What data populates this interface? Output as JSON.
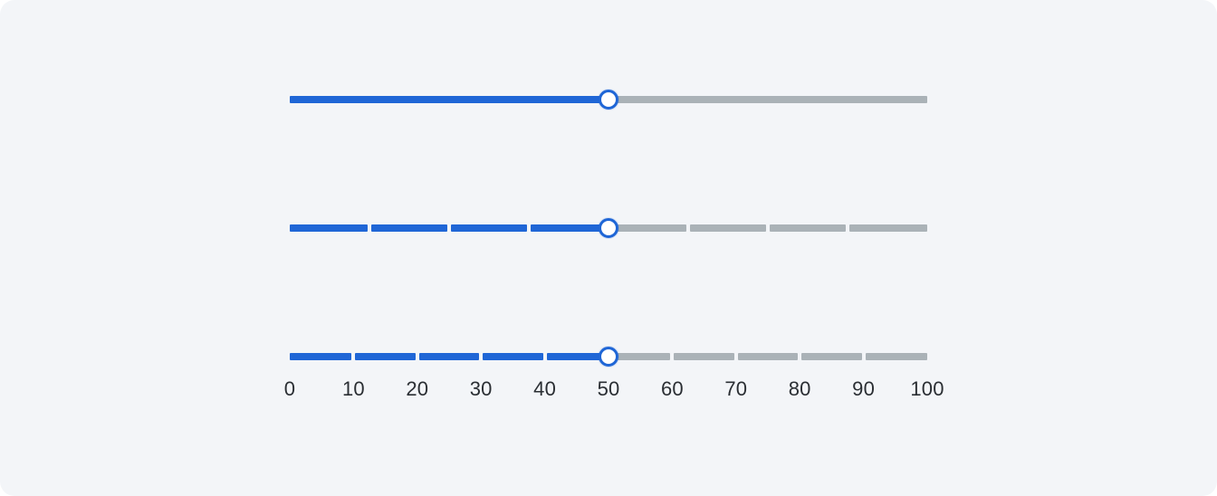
{
  "colors": {
    "panel_background": "#f3f5f8",
    "active_track": "#1f66d6",
    "inactive_track": "#aab2b7",
    "thumb_border": "#1f66d6",
    "thumb_fill": "#ffffff",
    "tick_label": "#2a2e33"
  },
  "sliders": [
    {
      "id": "continuous-slider",
      "min": 0,
      "max": 100,
      "value": 50,
      "step": null,
      "segments": 1
    },
    {
      "id": "stepped-slider",
      "min": 0,
      "max": 100,
      "value": 50,
      "step": 12.5,
      "segments": 8
    },
    {
      "id": "ticked-slider",
      "min": 0,
      "max": 100,
      "value": 50,
      "step": 10,
      "segments": 10
    }
  ],
  "tick_labels": [
    "0",
    "10",
    "20",
    "30",
    "40",
    "50",
    "60",
    "70",
    "80",
    "90",
    "100"
  ]
}
